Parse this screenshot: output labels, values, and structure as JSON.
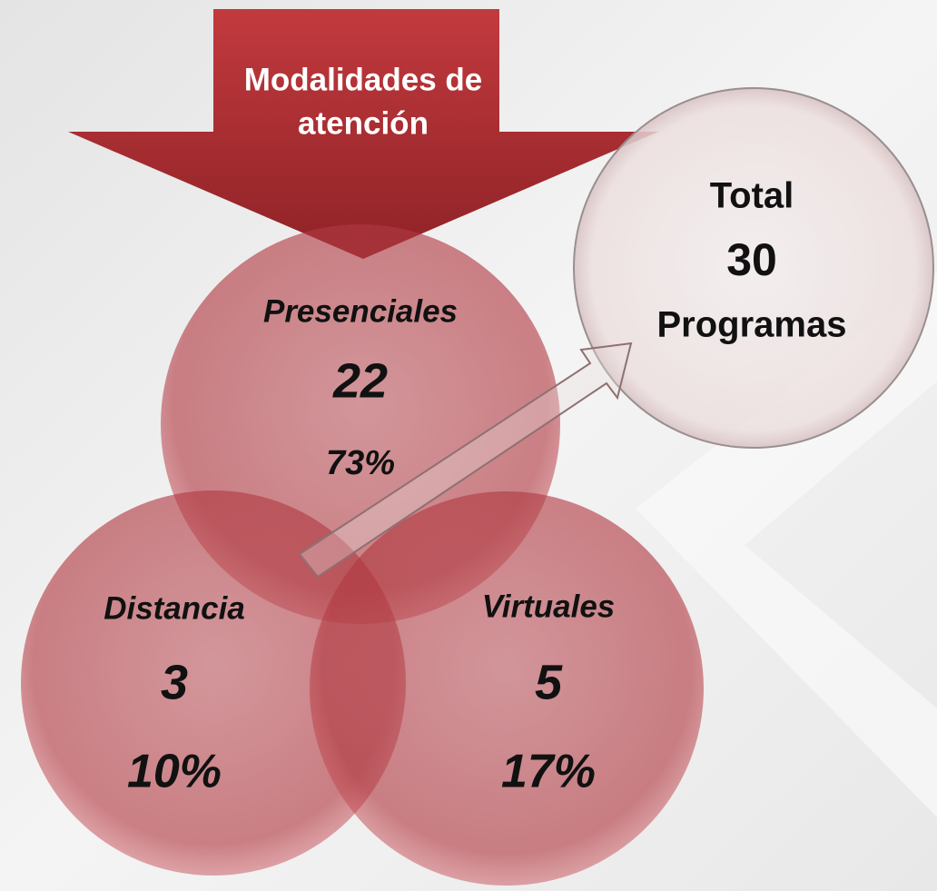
{
  "header": {
    "title_lines": [
      "Modalidades de",
      "atención"
    ]
  },
  "modalities": [
    {
      "name": "Presenciales",
      "count": 22,
      "percent": "73%"
    },
    {
      "name": "Distancia",
      "count": 3,
      "percent": "10%"
    },
    {
      "name": "Virtuales",
      "count": 5,
      "percent": "17%"
    }
  ],
  "total": {
    "label": "Total",
    "count": 30,
    "unit": "Programas"
  }
}
